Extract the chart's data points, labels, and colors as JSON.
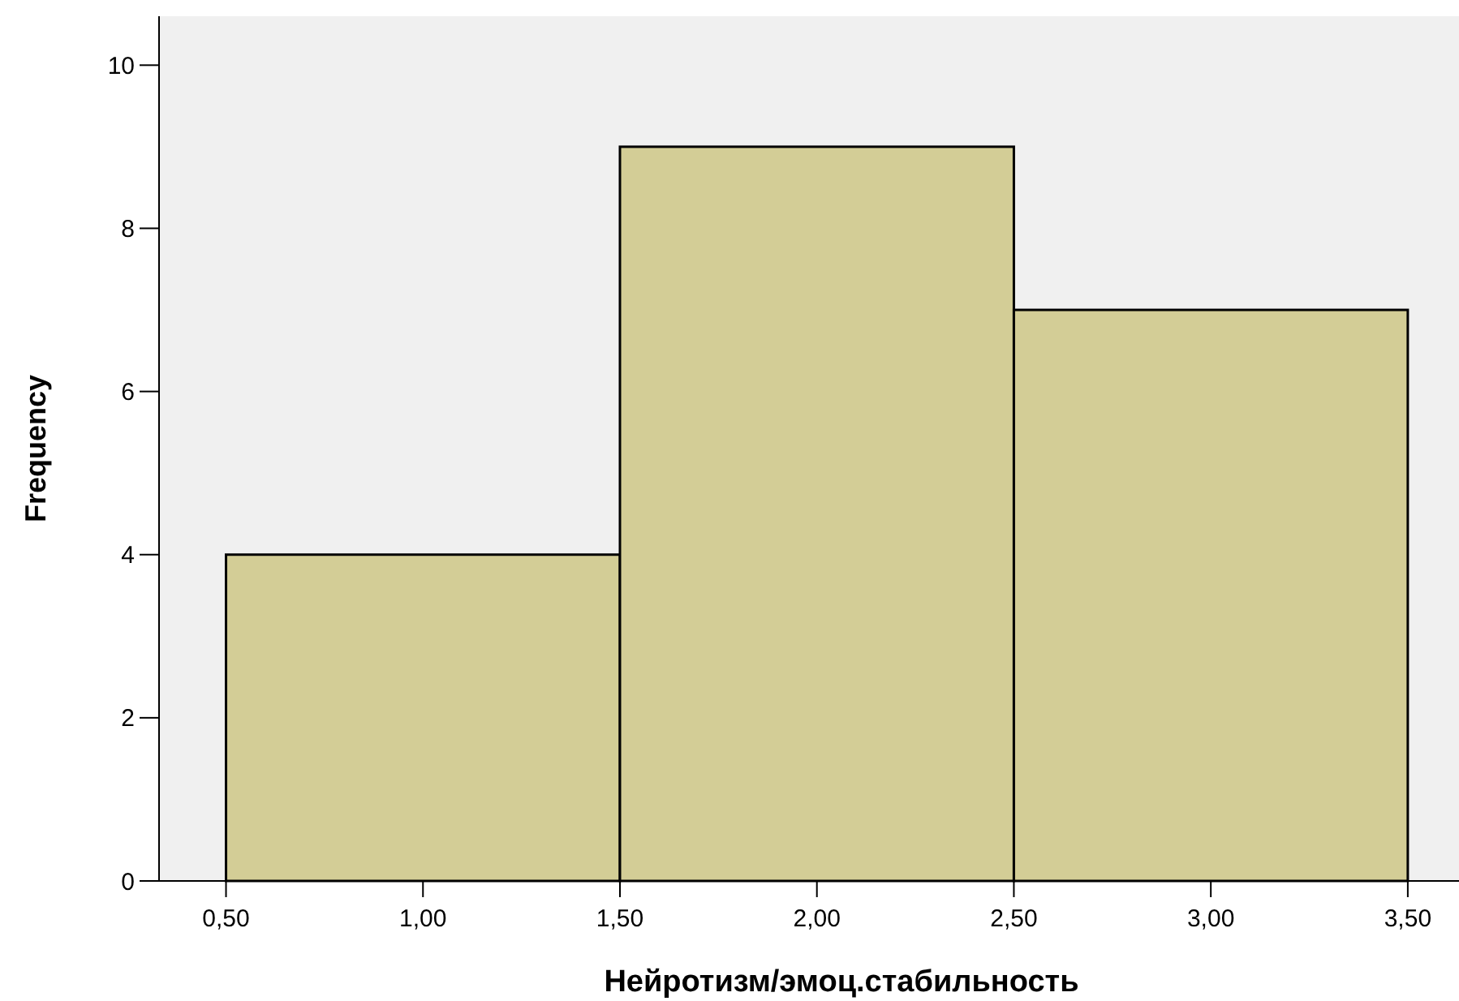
{
  "chart_data": {
    "type": "histogram",
    "xlabel": "Нейротизм/эмоц.стабильность",
    "ylabel": "Frequency",
    "bins": [
      0.5,
      1.5,
      2.5,
      3.5
    ],
    "values": [
      4,
      9,
      7
    ],
    "color": "#d3cd96",
    "xlim": [
      0.33,
      3.63
    ],
    "xticks": [
      {
        "value": 0.5,
        "label": "0,50"
      },
      {
        "value": 1,
        "label": "1,00"
      },
      {
        "value": 1.5,
        "label": "1,50"
      },
      {
        "value": 2,
        "label": "2,00"
      },
      {
        "value": 2.5,
        "label": "2,50"
      },
      {
        "value": 3,
        "label": "3,00"
      },
      {
        "value": 3.5,
        "label": "3,50"
      }
    ],
    "ylim": [
      0,
      10.6
    ],
    "yticks": [
      0,
      2,
      4,
      6,
      8,
      10
    ]
  }
}
